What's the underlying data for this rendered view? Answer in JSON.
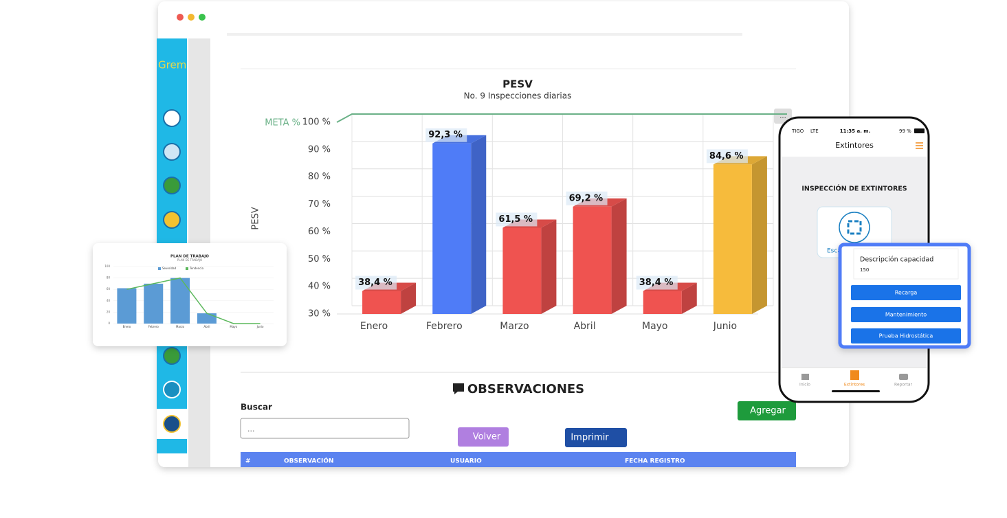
{
  "sidebar": {
    "brand": "Grem"
  },
  "chart_data": {
    "type": "bar3d",
    "title": "PESV",
    "subtitle": "No. 9 Inspecciones diarias",
    "y_label": "PESV",
    "meta_label": "META %",
    "meta": 100,
    "categories": [
      "Enero",
      "Febrero",
      "Marzo",
      "Abril",
      "Mayo",
      "Junio"
    ],
    "values": [
      38.4,
      92.3,
      61.5,
      69.2,
      38.4,
      84.6
    ],
    "value_labels": [
      "38,4 %",
      "92,3 %",
      "61,5 %",
      "69,2 %",
      "38,4 %",
      "84,6 %"
    ],
    "colors": [
      "#ef5350",
      "#4f7cf7",
      "#ef5350",
      "#ef5350",
      "#ef5350",
      "#f6bb3c"
    ],
    "ylim": [
      30,
      100
    ],
    "yticks": [
      {
        "value": 30,
        "label": "30 %"
      },
      {
        "value": 40,
        "label": "40 %"
      },
      {
        "value": 50,
        "label": "50 %"
      },
      {
        "value": 60,
        "label": "60 %"
      },
      {
        "value": 70,
        "label": "70 %"
      },
      {
        "value": 80,
        "label": "80 %"
      },
      {
        "value": 90,
        "label": "90 %"
      },
      {
        "value": 100,
        "label": "100 %"
      }
    ],
    "grid": true
  },
  "observations": {
    "title": "OBSERVACIONES",
    "search_label": "Buscar",
    "search_value": "...",
    "buttons": [
      "Agregar",
      "Volver",
      "Imprimir"
    ],
    "table_headers": [
      "#",
      "OBSERVACIÓN",
      "USUARIO",
      "FECHA REGISTRO"
    ]
  },
  "mini_chart": {
    "type": "bar-line",
    "title": "PLAN DE TRABAJO",
    "subtitle": "PLAN DE TRABAJO",
    "categories": [
      "Enero",
      "Febrero",
      "Marzo",
      "Abril",
      "Mayo",
      "Junio"
    ],
    "series": [
      {
        "name": "Severidad",
        "color": "#5b9bd5",
        "values": [
          62,
          70,
          80,
          18,
          0,
          0
        ]
      },
      {
        "name": "Tendencia",
        "color": "#5cb85c",
        "values": [
          60,
          70,
          80,
          18,
          0,
          0
        ]
      }
    ],
    "ylim": [
      0,
      100
    ],
    "yticks": [
      0,
      20,
      40,
      60,
      80,
      100
    ]
  },
  "phone": {
    "carrier": "TIGO",
    "network": "LTE",
    "time": "11:35 a. m.",
    "battery": "99 %",
    "header": "Extintores",
    "section_title": "INSPECCIÓN DE EXTINTORES",
    "scan_label": "Esca",
    "popup": {
      "field_label": "Descripción capacidad",
      "field_value": "150",
      "buttons": [
        "Recarga",
        "Mantenimiento",
        "Prueba Hidrostática"
      ]
    },
    "tabs": [
      "Inicio",
      "Extintores",
      "Reportar"
    ]
  }
}
